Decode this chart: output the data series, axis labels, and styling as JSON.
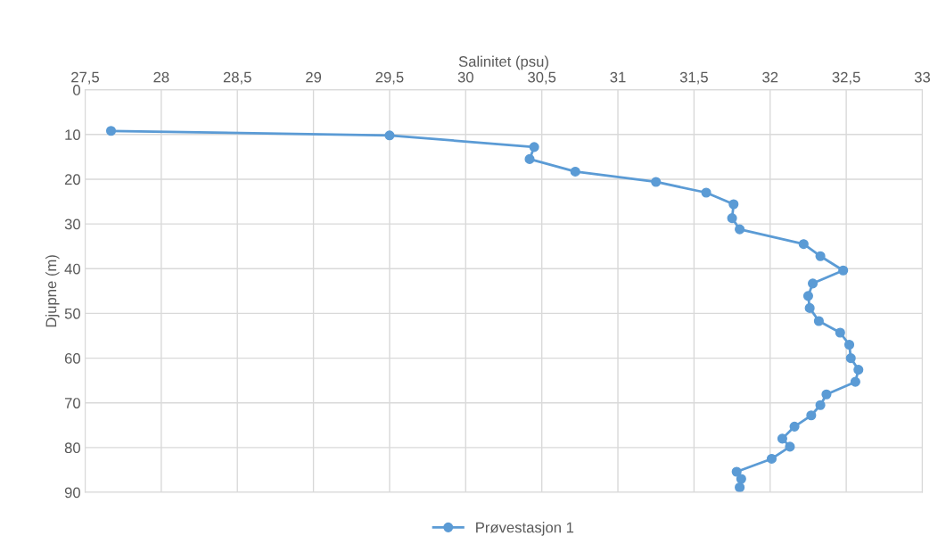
{
  "chart_data": {
    "type": "line",
    "xlabel": "Salinitet (psu)",
    "ylabel": "Djupne (m)",
    "xlim": [
      27.5,
      33
    ],
    "xticks": [
      {
        "value": 27.5,
        "label": "27,5"
      },
      28,
      {
        "value": 28.5,
        "label": "28,5"
      },
      29,
      {
        "value": 29.5,
        "label": "29,5"
      },
      30,
      {
        "value": 30.5,
        "label": "30,5"
      },
      31,
      {
        "value": 31.5,
        "label": "31,5"
      },
      32,
      {
        "value": 32.5,
        "label": "32,5"
      },
      33
    ],
    "ylim": [
      90,
      0
    ],
    "yticks": [
      0,
      10,
      20,
      30,
      40,
      50,
      60,
      70,
      80,
      90
    ],
    "grid": true,
    "legend": "bottom",
    "marker": "circle",
    "line_style": "solid",
    "series": [
      {
        "name": "Prøvestasjon 1",
        "color": "#5b9bd5",
        "x": [
          27.67,
          29.5,
          30.45,
          30.42,
          30.72,
          31.25,
          31.58,
          31.76,
          31.75,
          31.8,
          32.22,
          32.33,
          32.48,
          32.28,
          32.25,
          32.26,
          32.32,
          32.46,
          32.52,
          32.53,
          32.58,
          32.56,
          32.37,
          32.33,
          32.27,
          32.16,
          32.08,
          32.13,
          32.01,
          31.78,
          31.81,
          31.8
        ],
        "values": [
          9.2,
          10.2,
          12.8,
          15.5,
          18.3,
          20.6,
          23,
          25.6,
          28.7,
          31.2,
          34.5,
          37.2,
          40.4,
          43.3,
          46.1,
          48.8,
          51.7,
          54.3,
          57,
          60,
          62.6,
          65.3,
          68.1,
          70.5,
          72.8,
          75.3,
          78,
          79.8,
          82.5,
          85.4,
          87,
          88.9
        ]
      }
    ]
  }
}
